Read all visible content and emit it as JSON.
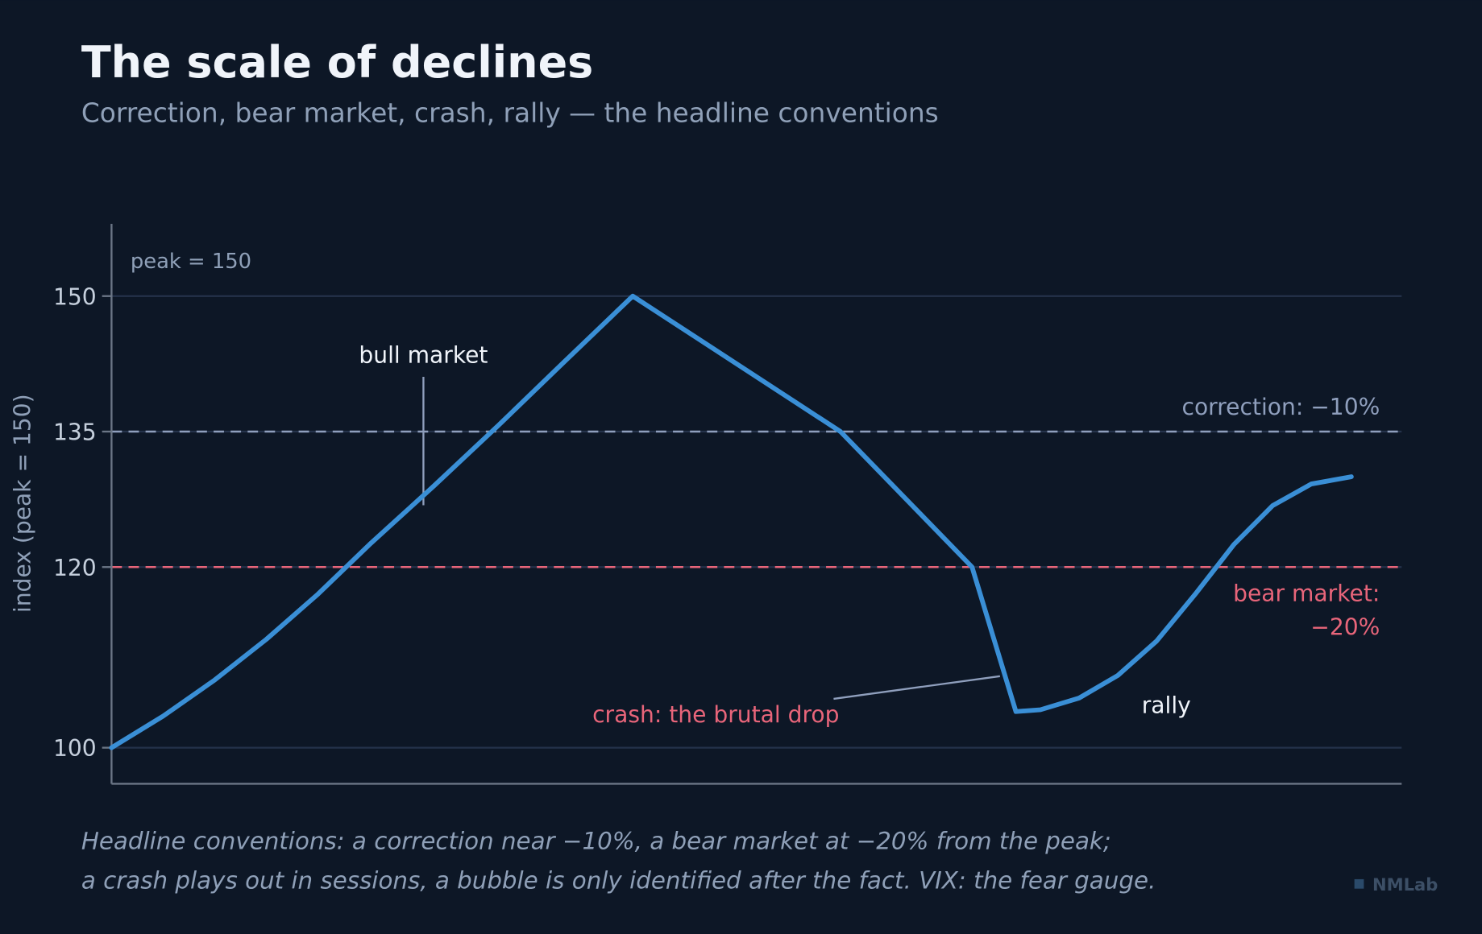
{
  "chart_data": {
    "type": "line",
    "title": "The scale of declines",
    "subtitle": "Correction, bear market, crash, rally — the headline conventions",
    "y_label": "index (peak = 150)",
    "x": [
      0,
      4,
      8,
      12,
      16,
      20,
      25,
      30,
      35,
      40.4,
      56.5,
      66.7,
      70.1,
      72,
      75,
      78,
      81,
      84,
      87,
      90,
      93,
      96.1
    ],
    "values": [
      100,
      103.5,
      107.5,
      112,
      117,
      122.5,
      129,
      135.7,
      142.6,
      150,
      135,
      120,
      104,
      104.2,
      105.5,
      108,
      111.8,
      117,
      122.5,
      126.8,
      129.2,
      130
    ],
    "color": "#3a8fd6",
    "xlim": [
      0,
      100
    ],
    "ylim": [
      96,
      158
    ],
    "yticks": [
      100,
      120,
      135,
      150
    ],
    "grid": true,
    "reference_lines": [
      {
        "value": 135,
        "label_lines": [
          "correction: −10%"
        ],
        "color": "#8f9fbd"
      },
      {
        "value": 120,
        "label_lines": [
          "bear market:",
          "−20%"
        ],
        "color": "#e8657a"
      }
    ],
    "annotations": {
      "peak": "peak = 150",
      "bull": "bull market",
      "crash": "crash: the brutal drop",
      "rally": "rally"
    },
    "footnote": [
      "Headline conventions: a correction near −10%, a bear market at −20% from the peak;",
      "a crash plays out in sessions, a bubble is only identified after the fact. VIX: the fear gauge."
    ],
    "watermark": "NMLab"
  }
}
